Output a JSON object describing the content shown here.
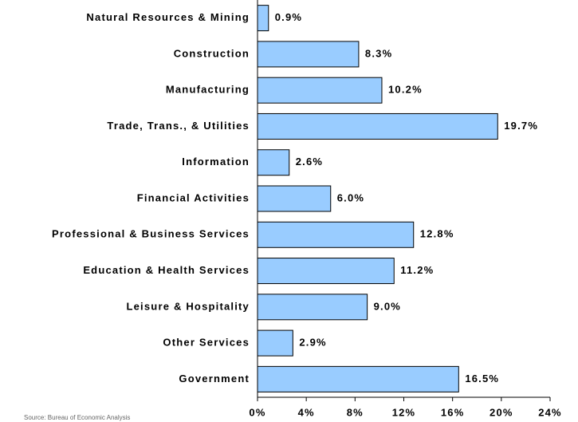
{
  "chart_data": {
    "type": "bar",
    "orientation": "horizontal",
    "categories": [
      "Natural Resources & Mining",
      "Construction",
      "Manufacturing",
      "Trade, Trans., & Utilities",
      "Information",
      "Financial Activities",
      "Professional & Business Services",
      "Education & Health Services",
      "Leisure & Hospitality",
      "Other Services",
      "Government"
    ],
    "values": [
      0.9,
      8.3,
      10.2,
      19.7,
      2.6,
      6.0,
      12.8,
      11.2,
      9.0,
      2.9,
      16.5
    ],
    "value_labels": [
      "0.9%",
      "8.3%",
      "10.2%",
      "19.7%",
      "2.6%",
      "6.0%",
      "12.8%",
      "11.2%",
      "9.0%",
      "2.9%",
      "16.5%"
    ],
    "color": "#99ccff",
    "xlim": [
      0,
      24
    ],
    "xticks": [
      {
        "value": 0,
        "label": "0%"
      },
      {
        "value": 4,
        "label": "4%"
      },
      {
        "value": 8,
        "label": "8%"
      },
      {
        "value": 12,
        "label": "12%"
      },
      {
        "value": 16,
        "label": "16%"
      },
      {
        "value": 20,
        "label": "20%"
      },
      {
        "value": 24,
        "label": "24%"
      }
    ],
    "grid": false,
    "source": "Source: Bureau of Economic Analysis"
  }
}
